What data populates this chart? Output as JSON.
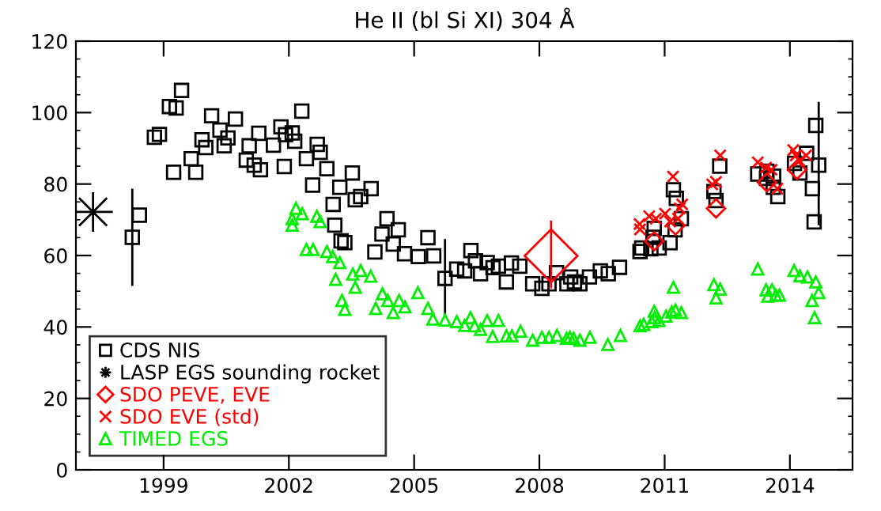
{
  "chart_data": {
    "type": "scatter",
    "title": "He II (bl Si XI) 304 Å",
    "xlim": [
      1996.9,
      2015.5
    ],
    "xticks": [
      1999,
      2002,
      2005,
      2008,
      2011,
      2014
    ],
    "ylim": [
      0,
      120
    ],
    "yticks": [
      0,
      20,
      40,
      60,
      80,
      100,
      120
    ],
    "grid": false,
    "legend": "bottom left",
    "series": [
      {
        "name": "CDS NIS",
        "color": "#000000",
        "marker": "square",
        "x": [
          1998.25,
          1998.42,
          1998.78,
          1998.9,
          1999.14,
          1999.3,
          1999.43,
          1999.24,
          1999.66,
          1999.77,
          1999.92,
          2000.01,
          2000.15,
          2000.35,
          2000.45,
          2000.54,
          2000.72,
          2000.98,
          2001.05,
          2001.17,
          2001.28,
          2001.32,
          2001.63,
          2001.81,
          2001.89,
          2001.92,
          2002.08,
          2002.14,
          2002.31,
          2002.42,
          2002.57,
          2002.68,
          2002.75,
          2002.91,
          2003.06,
          2003.1,
          2003.22,
          2003.25,
          2003.34,
          2003.52,
          2003.59,
          2003.72,
          2003.97,
          2004.06,
          2004.23,
          2004.35,
          2004.5,
          2004.62,
          2004.77,
          2005.1,
          2005.33,
          2005.47,
          2005.74,
          2006.02,
          2006.21,
          2006.36,
          2006.47,
          2006.59,
          2006.75,
          2006.89,
          2007.02,
          2007.21,
          2007.33,
          2007.53,
          2007.84,
          2008.06,
          2008.23,
          2008.41,
          2008.66,
          2008.75,
          2008.84,
          2008.97,
          2009.2,
          2009.46,
          2009.65,
          2009.92,
          2010.41,
          2010.45,
          2010.67,
          2010.75,
          2010.72,
          2010.87,
          2011.13,
          2011.25,
          2011.4,
          2011.21,
          2011.28,
          2012.18,
          2012.23,
          2012.32,
          2013.23,
          2013.45,
          2013.44,
          2013.61,
          2013.6,
          2013.71,
          2014.11,
          2014.24,
          2014.4,
          2014.62,
          2014.69,
          2014.54,
          2014.58
        ],
        "values": [
          65.1,
          71.3,
          93.1,
          93.9,
          101.7,
          101.3,
          106.2,
          83.3,
          87.1,
          83.3,
          92.4,
          90.2,
          99.1,
          95.1,
          90.7,
          92.9,
          98.2,
          86.7,
          90.7,
          85.3,
          94.2,
          84.0,
          90.9,
          96.0,
          84.9,
          93.8,
          94.3,
          92.0,
          100.4,
          87.1,
          79.7,
          91.1,
          88.9,
          84.3,
          74.3,
          68.5,
          79.1,
          64.1,
          63.6,
          83.1,
          75.6,
          76.5,
          78.7,
          61.0,
          66.0,
          70.3,
          63.2,
          67.2,
          60.5,
          59.7,
          65.0,
          59.9,
          53.6,
          56.2,
          55.7,
          61.4,
          58.5,
          54.9,
          58.0,
          56.6,
          57.0,
          52.6,
          57.9,
          57.0,
          52.1,
          50.8,
          52.1,
          55.2,
          52.1,
          54.0,
          52.6,
          52.1,
          54.0,
          55.7,
          54.9,
          56.7,
          61.1,
          62.1,
          61.9,
          67.6,
          65.1,
          62.1,
          63.6,
          67.2,
          70.3,
          78.4,
          76.0,
          77.9,
          75.4,
          85.0,
          82.8,
          83.6,
          81.6,
          82.2,
          79.1,
          76.5,
          85.8,
          83.1,
          88.6,
          96.4,
          85.3,
          78.7,
          69.4
        ],
        "errors": [
          [
            51.8,
            78.4
          ],
          null,
          null,
          null,
          null,
          null,
          null,
          null,
          null,
          null,
          null,
          null,
          null,
          null,
          null,
          null,
          null,
          null,
          null,
          null,
          null,
          null,
          null,
          null,
          null,
          null,
          null,
          null,
          null,
          null,
          null,
          null,
          null,
          null,
          null,
          null,
          null,
          null,
          null,
          null,
          null,
          null,
          null,
          null,
          null,
          null,
          null,
          null,
          null,
          null,
          null,
          null,
          [
            43.0,
            64.3
          ],
          null,
          null,
          null,
          null,
          null,
          null,
          null,
          null,
          null,
          null,
          null,
          null,
          null,
          null,
          null,
          null,
          null,
          null,
          null,
          null,
          null,
          null,
          null,
          null,
          null,
          null,
          null,
          null,
          null,
          null,
          null,
          null,
          null,
          null,
          null,
          null,
          null,
          null,
          null,
          null,
          null,
          null,
          null,
          null,
          null,
          null,
          null,
          [
            68.8,
            102.7
          ],
          null,
          null
        ]
      },
      {
        "name": "LASP EGS sounding rocket",
        "color": "#000000",
        "marker": "star",
        "x": [
          1997.31
        ],
        "values": [
          72.2
        ]
      },
      {
        "name": "SDO PEVE, EVE",
        "color": "#ff0000",
        "marker": "diamond",
        "x": [
          2008.28,
          2010.75,
          2011.26,
          2012.23,
          2013.45,
          2014.17
        ],
        "values": [
          59.9,
          64.0,
          68.4,
          73.2,
          80.5,
          84.0
        ],
        "sizes": [
          1,
          0.12,
          0.12,
          0.12,
          0.12,
          0.12
        ],
        "errors": [
          [
            51.1,
            69.5
          ],
          null,
          null,
          null,
          null,
          null
        ]
      },
      {
        "name": "SDO EVE (std)",
        "color": "#ff0000",
        "marker": "cross",
        "x": [
          2010.4,
          2010.41,
          2010.63,
          2010.69,
          2010.79,
          2011.01,
          2011.2,
          2011.13,
          2011.36,
          2011.32,
          2011.42,
          2012.23,
          2012.33,
          2012.14,
          2013.23,
          2013.43,
          2013.56,
          2013.7,
          2014.08,
          2014.14,
          2014.39,
          2014.23
        ],
        "values": [
          68.8,
          67.3,
          71.0,
          null,
          70.3,
          71.7,
          82.1,
          69.5,
          73.2,
          70.3,
          74.3,
          80.6,
          88.0,
          79.9,
          86.1,
          84.6,
          84.0,
          78.7,
          89.5,
          88.0,
          88.0,
          86.5
        ]
      },
      {
        "name": "TIMED EGS",
        "color": "#00ee00",
        "marker": "triangle",
        "x": [
          2002.17,
          2002.08,
          2002.08,
          2002.32,
          2002.67,
          2002.75,
          2002.42,
          2002.58,
          2002.91,
          2003.05,
          2003.22,
          2003.12,
          2003.53,
          2003.72,
          2003.96,
          2003.59,
          2003.27,
          2003.34,
          2004.08,
          2004.24,
          2004.37,
          2004.5,
          2004.64,
          2004.78,
          2005.09,
          2005.33,
          2005.45,
          2005.74,
          2006.02,
          2006.21,
          2006.35,
          2006.45,
          2006.59,
          2006.75,
          2006.88,
          2007.02,
          2007.21,
          2007.34,
          2007.55,
          2007.84,
          2008.06,
          2008.23,
          2008.42,
          2008.65,
          2008.73,
          2008.82,
          2008.97,
          2009.21,
          2009.64,
          2009.94,
          2010.41,
          2010.5,
          2010.69,
          2010.75,
          2010.76,
          2010.86,
          2011.03,
          2011.17,
          2011.26,
          2011.4,
          2011.21,
          2012.18,
          2012.33,
          2012.23,
          2013.23,
          2013.43,
          2013.57,
          2013.47,
          2013.66,
          2013.75,
          2014.1,
          2014.24,
          2014.42,
          2014.62,
          2014.69,
          2014.53,
          2014.59
        ],
        "values": [
          73.2,
          70.3,
          68.5,
          71.7,
          71.0,
          69.5,
          61.7,
          61.7,
          61.1,
          59.7,
          58.0,
          53.3,
          54.8,
          55.8,
          54.2,
          51.1,
          47.4,
          44.9,
          45.2,
          49.3,
          47.4,
          44.0,
          47.4,
          45.6,
          49.6,
          45.2,
          42.2,
          41.9,
          41.5,
          40.4,
          42.6,
          40.3,
          39.3,
          41.8,
          37.3,
          41.8,
          37.5,
          37.5,
          38.8,
          36.3,
          37.1,
          37.1,
          37.6,
          36.8,
          37.1,
          36.8,
          36.3,
          37.1,
          35.1,
          37.6,
          40.3,
          40.7,
          41.5,
          44.4,
          42.6,
          41.8,
          43.0,
          44.2,
          44.7,
          44.0,
          51.1,
          51.8,
          50.6,
          48.1,
          56.2,
          50.4,
          50.4,
          48.6,
          48.9,
          48.9,
          55.8,
          54.3,
          54.0,
          52.6,
          49.6,
          47.4,
          42.6
        ]
      }
    ]
  }
}
